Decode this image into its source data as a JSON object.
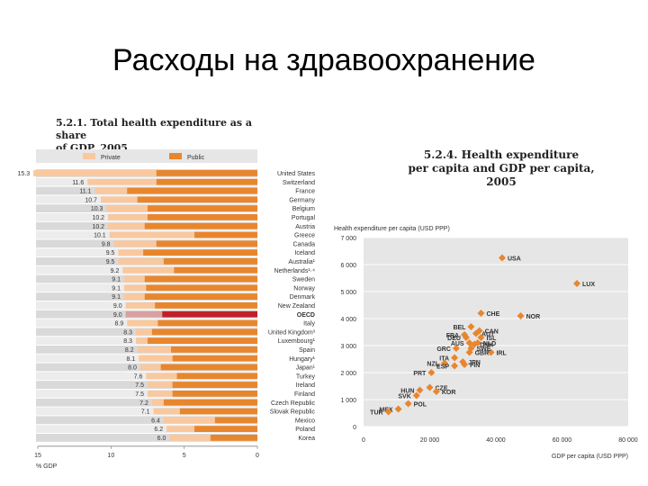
{
  "slide_title": "Расходы на здравоохранение",
  "colors": {
    "private": "#f9c89e",
    "public": "#e8862e",
    "oecd_private": "#d8a0a0",
    "oecd_public": "#c0202a",
    "diamond": "#e8862e"
  },
  "chart_data": [
    {
      "type": "bar",
      "title": "5.2.1. Total health expenditure as a share of GDP, 2005",
      "title_line1": "5.2.1. Total health expenditure as a share",
      "title_line2": "of GDP, 2005",
      "legend": [
        "Private",
        "Public"
      ],
      "xlabel": "% GDP",
      "xlim": [
        15,
        0
      ],
      "ticks": [
        "15",
        "10",
        "5",
        "0"
      ],
      "categories": [
        {
          "country": "United States",
          "total": "15.3",
          "value": 15.3,
          "public": 6.9
        },
        {
          "country": "Switzerland",
          "total": "11.6",
          "value": 11.6,
          "public": 6.9
        },
        {
          "country": "France",
          "total": "11.1",
          "value": 11.1,
          "public": 8.9
        },
        {
          "country": "Germany",
          "total": "10.7",
          "value": 10.7,
          "public": 8.2
        },
        {
          "country": "Belgium",
          "total": "10.3",
          "value": 10.3,
          "public": 7.5
        },
        {
          "country": "Portugal",
          "total": "10.2",
          "value": 10.2,
          "public": 7.5
        },
        {
          "country": "Austria",
          "total": "10.2",
          "value": 10.2,
          "public": 7.7
        },
        {
          "country": "Greece",
          "total": "10.1",
          "value": 10.1,
          "public": 4.3
        },
        {
          "country": "Canada",
          "total": "9.8",
          "value": 9.8,
          "public": 6.9
        },
        {
          "country": "Iceland",
          "total": "9.5",
          "value": 9.5,
          "public": 7.8
        },
        {
          "country": "Australia¹",
          "total": "9.5",
          "value": 9.5,
          "public": 6.4
        },
        {
          "country": "Netherlands¹·⁴",
          "total": "9.2",
          "value": 9.2,
          "public": 5.7
        },
        {
          "country": "Sweden",
          "total": "9.1",
          "value": 9.1,
          "public": 7.7
        },
        {
          "country": "Norway",
          "total": "9.1",
          "value": 9.1,
          "public": 7.6
        },
        {
          "country": "Denmark",
          "total": "9.1",
          "value": 9.1,
          "public": 7.7
        },
        {
          "country": "New Zealand",
          "total": "9.0",
          "value": 9.0,
          "public": 7.0
        },
        {
          "country": "OECD",
          "total": "9.0",
          "value": 9.0,
          "public": 6.5,
          "highlight": true
        },
        {
          "country": "Italy",
          "total": "8.9",
          "value": 8.9,
          "public": 6.8
        },
        {
          "country": "United Kingdom³",
          "total": "8.3",
          "value": 8.3,
          "public": 7.2
        },
        {
          "country": "Luxembourg¹",
          "total": "8.3",
          "value": 8.3,
          "public": 7.5
        },
        {
          "country": "Spain",
          "total": "8.2",
          "value": 8.2,
          "public": 5.9
        },
        {
          "country": "Hungary¹",
          "total": "8.1",
          "value": 8.1,
          "public": 5.8
        },
        {
          "country": "Japan¹",
          "total": "8.0",
          "value": 8.0,
          "public": 6.6
        },
        {
          "country": "Turkey",
          "total": "7.6",
          "value": 7.6,
          "public": 5.5
        },
        {
          "country": "Ireland",
          "total": "7.5",
          "value": 7.5,
          "public": 5.8
        },
        {
          "country": "Finland",
          "total": "7.5",
          "value": 7.5,
          "public": 5.8
        },
        {
          "country": "Czech Republic",
          "total": "7.2",
          "value": 7.2,
          "public": 6.4
        },
        {
          "country": "Slovak Republic",
          "total": "7.1",
          "value": 7.1,
          "public": 5.3
        },
        {
          "country": "Mexico",
          "total": "6.4",
          "value": 6.4,
          "public": 2.9
        },
        {
          "country": "Poland",
          "total": "6.2",
          "value": 6.2,
          "public": 4.3
        },
        {
          "country": "Korea",
          "total": "6.0",
          "value": 6.0,
          "public": 3.2
        }
      ]
    },
    {
      "type": "scatter",
      "title": "5.2.4. Health expenditure per capita and GDP per capita, 2005",
      "title_line1": "5.2.4. Health expenditure",
      "title_line2": "per capita and GDP per capita,",
      "title_line3": "2005",
      "ylabel": "Health expenditure per capita (USD PPP)",
      "xlabel": "GDP per capita (USD PPP)",
      "xlim": [
        0,
        80000
      ],
      "ylim": [
        0,
        7000
      ],
      "xticks": [
        "0",
        "20 000",
        "40 000",
        "60 000",
        "80 000"
      ],
      "yticks": [
        "0",
        "1 000",
        "2 000",
        "3 000",
        "4 000",
        "5 000",
        "6 000",
        "7 000"
      ],
      "points": [
        {
          "label": "USA",
          "x": 41900,
          "y": 6250
        },
        {
          "label": "LUX",
          "x": 64500,
          "y": 5300
        },
        {
          "label": "NOR",
          "x": 47500,
          "y": 4100
        },
        {
          "label": "CHE",
          "x": 35500,
          "y": 4200
        },
        {
          "label": "BEL",
          "x": 32500,
          "y": 3700
        },
        {
          "label": "CAN",
          "x": 35000,
          "y": 3550
        },
        {
          "label": "FRA",
          "x": 30500,
          "y": 3400
        },
        {
          "label": "DEU",
          "x": 31000,
          "y": 3300
        },
        {
          "label": "AUT",
          "x": 34000,
          "y": 3450
        },
        {
          "label": "ISL",
          "x": 35500,
          "y": 3300
        },
        {
          "label": "AUS",
          "x": 32000,
          "y": 3100
        },
        {
          "label": "NLD",
          "x": 34500,
          "y": 3100
        },
        {
          "label": "DNK",
          "x": 33500,
          "y": 3050
        },
        {
          "label": "GRC",
          "x": 28000,
          "y": 2900
        },
        {
          "label": "IRL",
          "x": 38500,
          "y": 2750
        },
        {
          "label": "GBR",
          "x": 32000,
          "y": 2750
        },
        {
          "label": "ITA",
          "x": 27500,
          "y": 2550
        },
        {
          "label": "NZL",
          "x": 24500,
          "y": 2350
        },
        {
          "label": "FIN",
          "x": 30500,
          "y": 2300
        },
        {
          "label": "SWE",
          "x": 32500,
          "y": 2900
        },
        {
          "label": "ESP",
          "x": 27500,
          "y": 2250
        },
        {
          "label": "JPN",
          "x": 30000,
          "y": 2400
        },
        {
          "label": "PRT",
          "x": 20500,
          "y": 2000
        },
        {
          "label": "CZE",
          "x": 20000,
          "y": 1450
        },
        {
          "label": "KOR",
          "x": 22000,
          "y": 1300
        },
        {
          "label": "HUN",
          "x": 17000,
          "y": 1350
        },
        {
          "label": "SVK",
          "x": 16000,
          "y": 1150
        },
        {
          "label": "POL",
          "x": 13500,
          "y": 850
        },
        {
          "label": "MEX",
          "x": 10500,
          "y": 650
        },
        {
          "label": "TUR",
          "x": 7500,
          "y": 550
        }
      ]
    }
  ]
}
